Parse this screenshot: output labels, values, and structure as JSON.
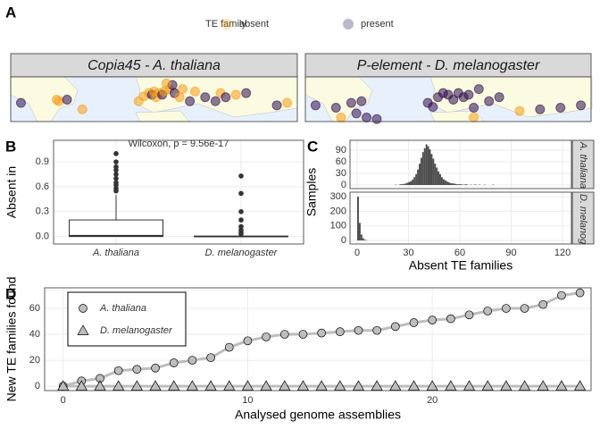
{
  "chart_data": [
    {
      "type": "map",
      "tag": "A",
      "legend_title": "TE family",
      "legend": [
        {
          "name": "absent",
          "color": "#f59e1b"
        },
        {
          "name": "present",
          "color": "#2d0c4e"
        }
      ],
      "xlim": [
        -130,
        150
      ],
      "ylim": [
        15,
        70
      ],
      "facets": [
        {
          "title": "Copia45 - A. thaliana",
          "lon": [
            -85,
            -83,
            -75,
            -5,
            0,
            5,
            8,
            10,
            12,
            15,
            18,
            20,
            25,
            30,
            35,
            38,
            45,
            50,
            60,
            70,
            75,
            80,
            90,
            100,
            -120,
            -60,
            130,
            140,
            28,
            22
          ],
          "lat": [
            42,
            40,
            42,
            40,
            46,
            50,
            48,
            52,
            45,
            50,
            48,
            52,
            55,
            50,
            45,
            55,
            40,
            52,
            45,
            40,
            50,
            45,
            48,
            50,
            38,
            30,
            35,
            38,
            60,
            62
          ],
          "status": [
            "absent",
            "absent",
            "present",
            "absent",
            "absent",
            "absent",
            "present",
            "absent",
            "absent",
            "absent",
            "present",
            "absent",
            "absent",
            "present",
            "absent",
            "absent",
            "present",
            "absent",
            "present",
            "present",
            "absent",
            "present",
            "absent",
            "present",
            "present",
            "absent",
            "present",
            "absent",
            "present",
            "absent"
          ]
        },
        {
          "title": "P-element - D. melanogaster",
          "lon": [
            -120,
            -100,
            -85,
            -80,
            -75,
            -95,
            -60,
            0,
            5,
            10,
            15,
            20,
            25,
            30,
            35,
            40,
            50,
            60,
            -10,
            100,
            120,
            140,
            80,
            35,
            -5,
            -70
          ],
          "lat": [
            35,
            32,
            38,
            25,
            40,
            20,
            18,
            45,
            50,
            48,
            42,
            50,
            45,
            48,
            32,
            55,
            40,
            45,
            38,
            30,
            32,
            35,
            28,
            20,
            33,
            20
          ],
          "status": [
            "present",
            "present",
            "present",
            "present",
            "present",
            "absent",
            "present",
            "present",
            "present",
            "present",
            "present",
            "present",
            "present",
            "present",
            "present",
            "present",
            "present",
            "present",
            "present",
            "present",
            "present",
            "present",
            "absent",
            "absent",
            "present",
            "present"
          ]
        }
      ]
    },
    {
      "type": "box",
      "tag": "B",
      "ylabel": "Absent in",
      "annotation": "Wilcoxon, p = 9.56e-17",
      "categories": [
        "A. thaliana",
        "D. melanogaster"
      ],
      "boxes": [
        {
          "whislo": 0,
          "q1": 0.0,
          "med": 0.01,
          "q3": 0.2,
          "whishi": 0.5,
          "fliers": [
            0.55,
            0.58,
            0.62,
            0.65,
            0.7,
            0.75,
            0.8,
            0.84,
            0.9,
            1.0
          ]
        },
        {
          "whislo": 0,
          "q1": 0,
          "med": 0,
          "q3": 0.005,
          "whishi": 0.01,
          "fliers": [
            0.03,
            0.05,
            0.08,
            0.12,
            0.2,
            0.3,
            0.52,
            0.73
          ]
        }
      ],
      "ylim": [
        -0.09,
        1.16
      ],
      "yticks": [
        {
          "value": 0,
          "label": "0.0"
        },
        {
          "value": 0.3,
          "label": "0.3"
        },
        {
          "value": 0.6,
          "label": "0.6"
        },
        {
          "value": 0.9,
          "label": "0.9"
        }
      ]
    },
    {
      "type": "histogram",
      "tag": "C",
      "xlabel": "Absent TE families",
      "ylabel": "Samples",
      "color": "#4d4d4d",
      "xlim": [
        -4.2,
        125.2
      ],
      "xticks": [
        0,
        30,
        60,
        90,
        120
      ],
      "facets": [
        {
          "name": "A. thaliana",
          "ylim": [
            -9.2,
            115.4
          ],
          "yticks": [
            0,
            30,
            60,
            90
          ],
          "bins": [
            20,
            21,
            22,
            23,
            24,
            25,
            26,
            27,
            28,
            29,
            30,
            31,
            32,
            33,
            34,
            35,
            36,
            37,
            38,
            39,
            40,
            41,
            42,
            43,
            44,
            45,
            46,
            47,
            48,
            49,
            50,
            51,
            52,
            53,
            54,
            55,
            56,
            57,
            58,
            59,
            60,
            61,
            62,
            63,
            64,
            65,
            66,
            67,
            68,
            69,
            70,
            71,
            72,
            73,
            74,
            75,
            76,
            77,
            78,
            79,
            80
          ],
          "counts": [
            0,
            0,
            1,
            0,
            1,
            2,
            2,
            3,
            4,
            6,
            8,
            10,
            14,
            20,
            28,
            40,
            55,
            70,
            85,
            95,
            105,
            100,
            92,
            80,
            68,
            55,
            45,
            35,
            28,
            20,
            15,
            12,
            9,
            7,
            5,
            4,
            4,
            3,
            2,
            2,
            2,
            1,
            1,
            2,
            1,
            0,
            1,
            0,
            1,
            1,
            0,
            1,
            0,
            0,
            1,
            0,
            0,
            0,
            0,
            1
          ]
        },
        {
          "name": "D. melanogaster",
          "ylim": [
            -24.5,
            331
          ],
          "yticks": [
            0,
            100,
            200,
            300
          ],
          "bins": [
            0,
            1,
            2,
            3,
            4,
            5,
            6
          ],
          "counts": [
            300,
            120,
            40,
            15,
            5,
            2
          ]
        }
      ]
    },
    {
      "type": "line",
      "tag": "D",
      "xlabel": "Analysed genome assemblies",
      "ylabel": "New TE families found",
      "xlim": [
        -1,
        28.6
      ],
      "xticks": [
        0,
        10,
        20
      ],
      "ylim": [
        -3.4,
        75.9
      ],
      "yticks": [
        0,
        20,
        40,
        60
      ],
      "x": [
        0,
        1,
        2,
        3,
        4,
        5,
        6,
        7,
        8,
        9,
        10,
        11,
        12,
        13,
        14,
        15,
        16,
        17,
        18,
        19,
        20,
        21,
        22,
        23,
        24,
        25,
        26,
        27,
        28
      ],
      "series": [
        {
          "name": "A. thaliana",
          "marker": "circle",
          "color": "#bdbdbd",
          "values": [
            0,
            4,
            6,
            12,
            13,
            14,
            18,
            20,
            22,
            30,
            35,
            38,
            40,
            40,
            41,
            42,
            43,
            43,
            46,
            49,
            51,
            52,
            55,
            58,
            60,
            60,
            63,
            70,
            72
          ]
        },
        {
          "name": "D. melanogaster",
          "marker": "triangle",
          "color": "#bdbdbd",
          "values": [
            0,
            0,
            0,
            0,
            0,
            0,
            0,
            0,
            0,
            0,
            0,
            0,
            0,
            0,
            0,
            0,
            0,
            0,
            0,
            0,
            0,
            0,
            0,
            0,
            0,
            0,
            0,
            0,
            0
          ]
        }
      ]
    }
  ]
}
